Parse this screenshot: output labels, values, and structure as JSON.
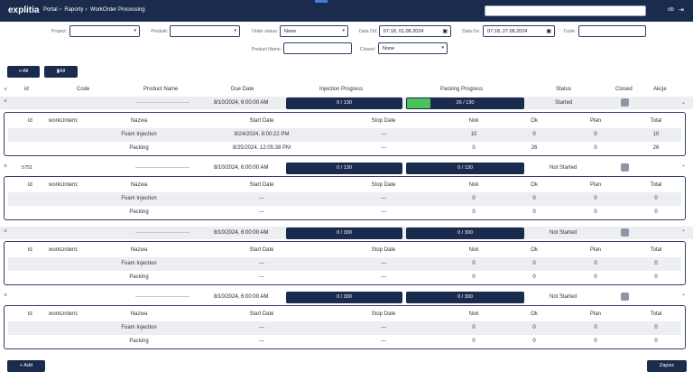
{
  "app": {
    "logo": "explitia",
    "crumbs": [
      "Portal",
      "Raporty",
      "WorkOrder Processing"
    ],
    "user": "ob",
    "logout_icon": "⇥"
  },
  "filters": {
    "project_label": "Project:",
    "project_value": "",
    "product_label": "Produkt:",
    "product_value": "",
    "order_status_label": "Order status:",
    "order_status_value": "None",
    "date_from_label": "Data Od:",
    "date_from_value": "07:18, 01.08.2024",
    "date_to_label": "Data Do:",
    "date_to_value": "07:18, 27.08.2024",
    "code_label": "Code:",
    "code_value": "",
    "product_name_label": "Product Name:",
    "product_name_value": "",
    "closed_label": "Closed:",
    "closed_value": "None"
  },
  "toolbar": {
    "expand_all": "↩All",
    "collapse_all": "▮All"
  },
  "table": {
    "headers": {
      "id": "id",
      "code": "Code",
      "product_name": "Product Name",
      "due_date": "Due Date",
      "injection": "Injection Progress",
      "packing": "Packing Progress",
      "status": "Status",
      "closed": "Closed",
      "actions": "Akcje"
    },
    "orders": [
      {
        "id": "",
        "due": "8/10/2024, 6:00:00 AM",
        "inj": "0 / 130",
        "inj_pct": 0,
        "pack": "26 / 130",
        "pack_pct": 0.2,
        "status": "Started",
        "caret": "⌄",
        "detail": {
          "headers": [
            "id",
            "workOrderId",
            "Nazwa",
            "Start Date",
            "Stop Date",
            "Nok",
            "Ok",
            "Plan",
            "Total"
          ],
          "rows": [
            [
              "",
              "",
              "Foam Injection",
              "8/24/2024, 8:00:22 PM",
              "---",
              "10",
              "0",
              "0",
              "10"
            ],
            [
              "",
              "",
              "Packing",
              "8/25/2024, 12:05:38 PM",
              "---",
              "0",
              "26",
              "0",
              "26"
            ]
          ]
        }
      },
      {
        "id": "5751",
        "due": "8/10/2024, 6:00:00 AM",
        "inj": "0 / 130",
        "inj_pct": 0,
        "pack": "0 / 130",
        "pack_pct": 0,
        "status": "Not Started",
        "caret": "⌃",
        "detail": {
          "headers": [
            "id",
            "workOrderId",
            "Nazwa",
            "Start Date",
            "Stop Date",
            "Nok",
            "Ok",
            "Plan",
            "Total"
          ],
          "rows": [
            [
              "",
              "",
              "Foam Injection",
              "---",
              "---",
              "0",
              "0",
              "0",
              "0"
            ],
            [
              "",
              "",
              "Packing",
              "---",
              "---",
              "0",
              "0",
              "0",
              "0"
            ]
          ]
        }
      },
      {
        "id": "",
        "due": "8/10/2024, 6:00:00 AM",
        "inj": "0 / 300",
        "inj_pct": 0,
        "pack": "0 / 300",
        "pack_pct": 0,
        "status": "Not Started",
        "caret": "⌃",
        "detail": {
          "headers": [
            "id",
            "workOrderId",
            "Nazwa",
            "Start Date",
            "Stop Date",
            "Nok",
            "Ok",
            "Plan",
            "Total"
          ],
          "rows": [
            [
              "",
              "",
              "Foam Injection",
              "---",
              "---",
              "0",
              "0",
              "0",
              "0"
            ],
            [
              "",
              "",
              "Packing",
              "---",
              "---",
              "0",
              "0",
              "0",
              "0"
            ]
          ]
        }
      },
      {
        "id": "",
        "due": "8/10/2024, 6:00:00 AM",
        "inj": "0 / 300",
        "inj_pct": 0,
        "pack": "0 / 300",
        "pack_pct": 0,
        "status": "Not Started",
        "caret": "⌃",
        "detail": {
          "headers": [
            "id",
            "workOrderId",
            "Nazwa",
            "Start Date",
            "Stop Date",
            "Nok",
            "Ok",
            "Plan",
            "Total"
          ],
          "rows": [
            [
              "",
              "",
              "Foam Injection",
              "---",
              "---",
              "0",
              "0",
              "0",
              "0"
            ],
            [
              "",
              "",
              "Packing",
              "---",
              "---",
              "0",
              "0",
              "0",
              "0"
            ]
          ]
        }
      }
    ]
  },
  "footer": {
    "add": "+ Add",
    "save": "Zapisz"
  }
}
